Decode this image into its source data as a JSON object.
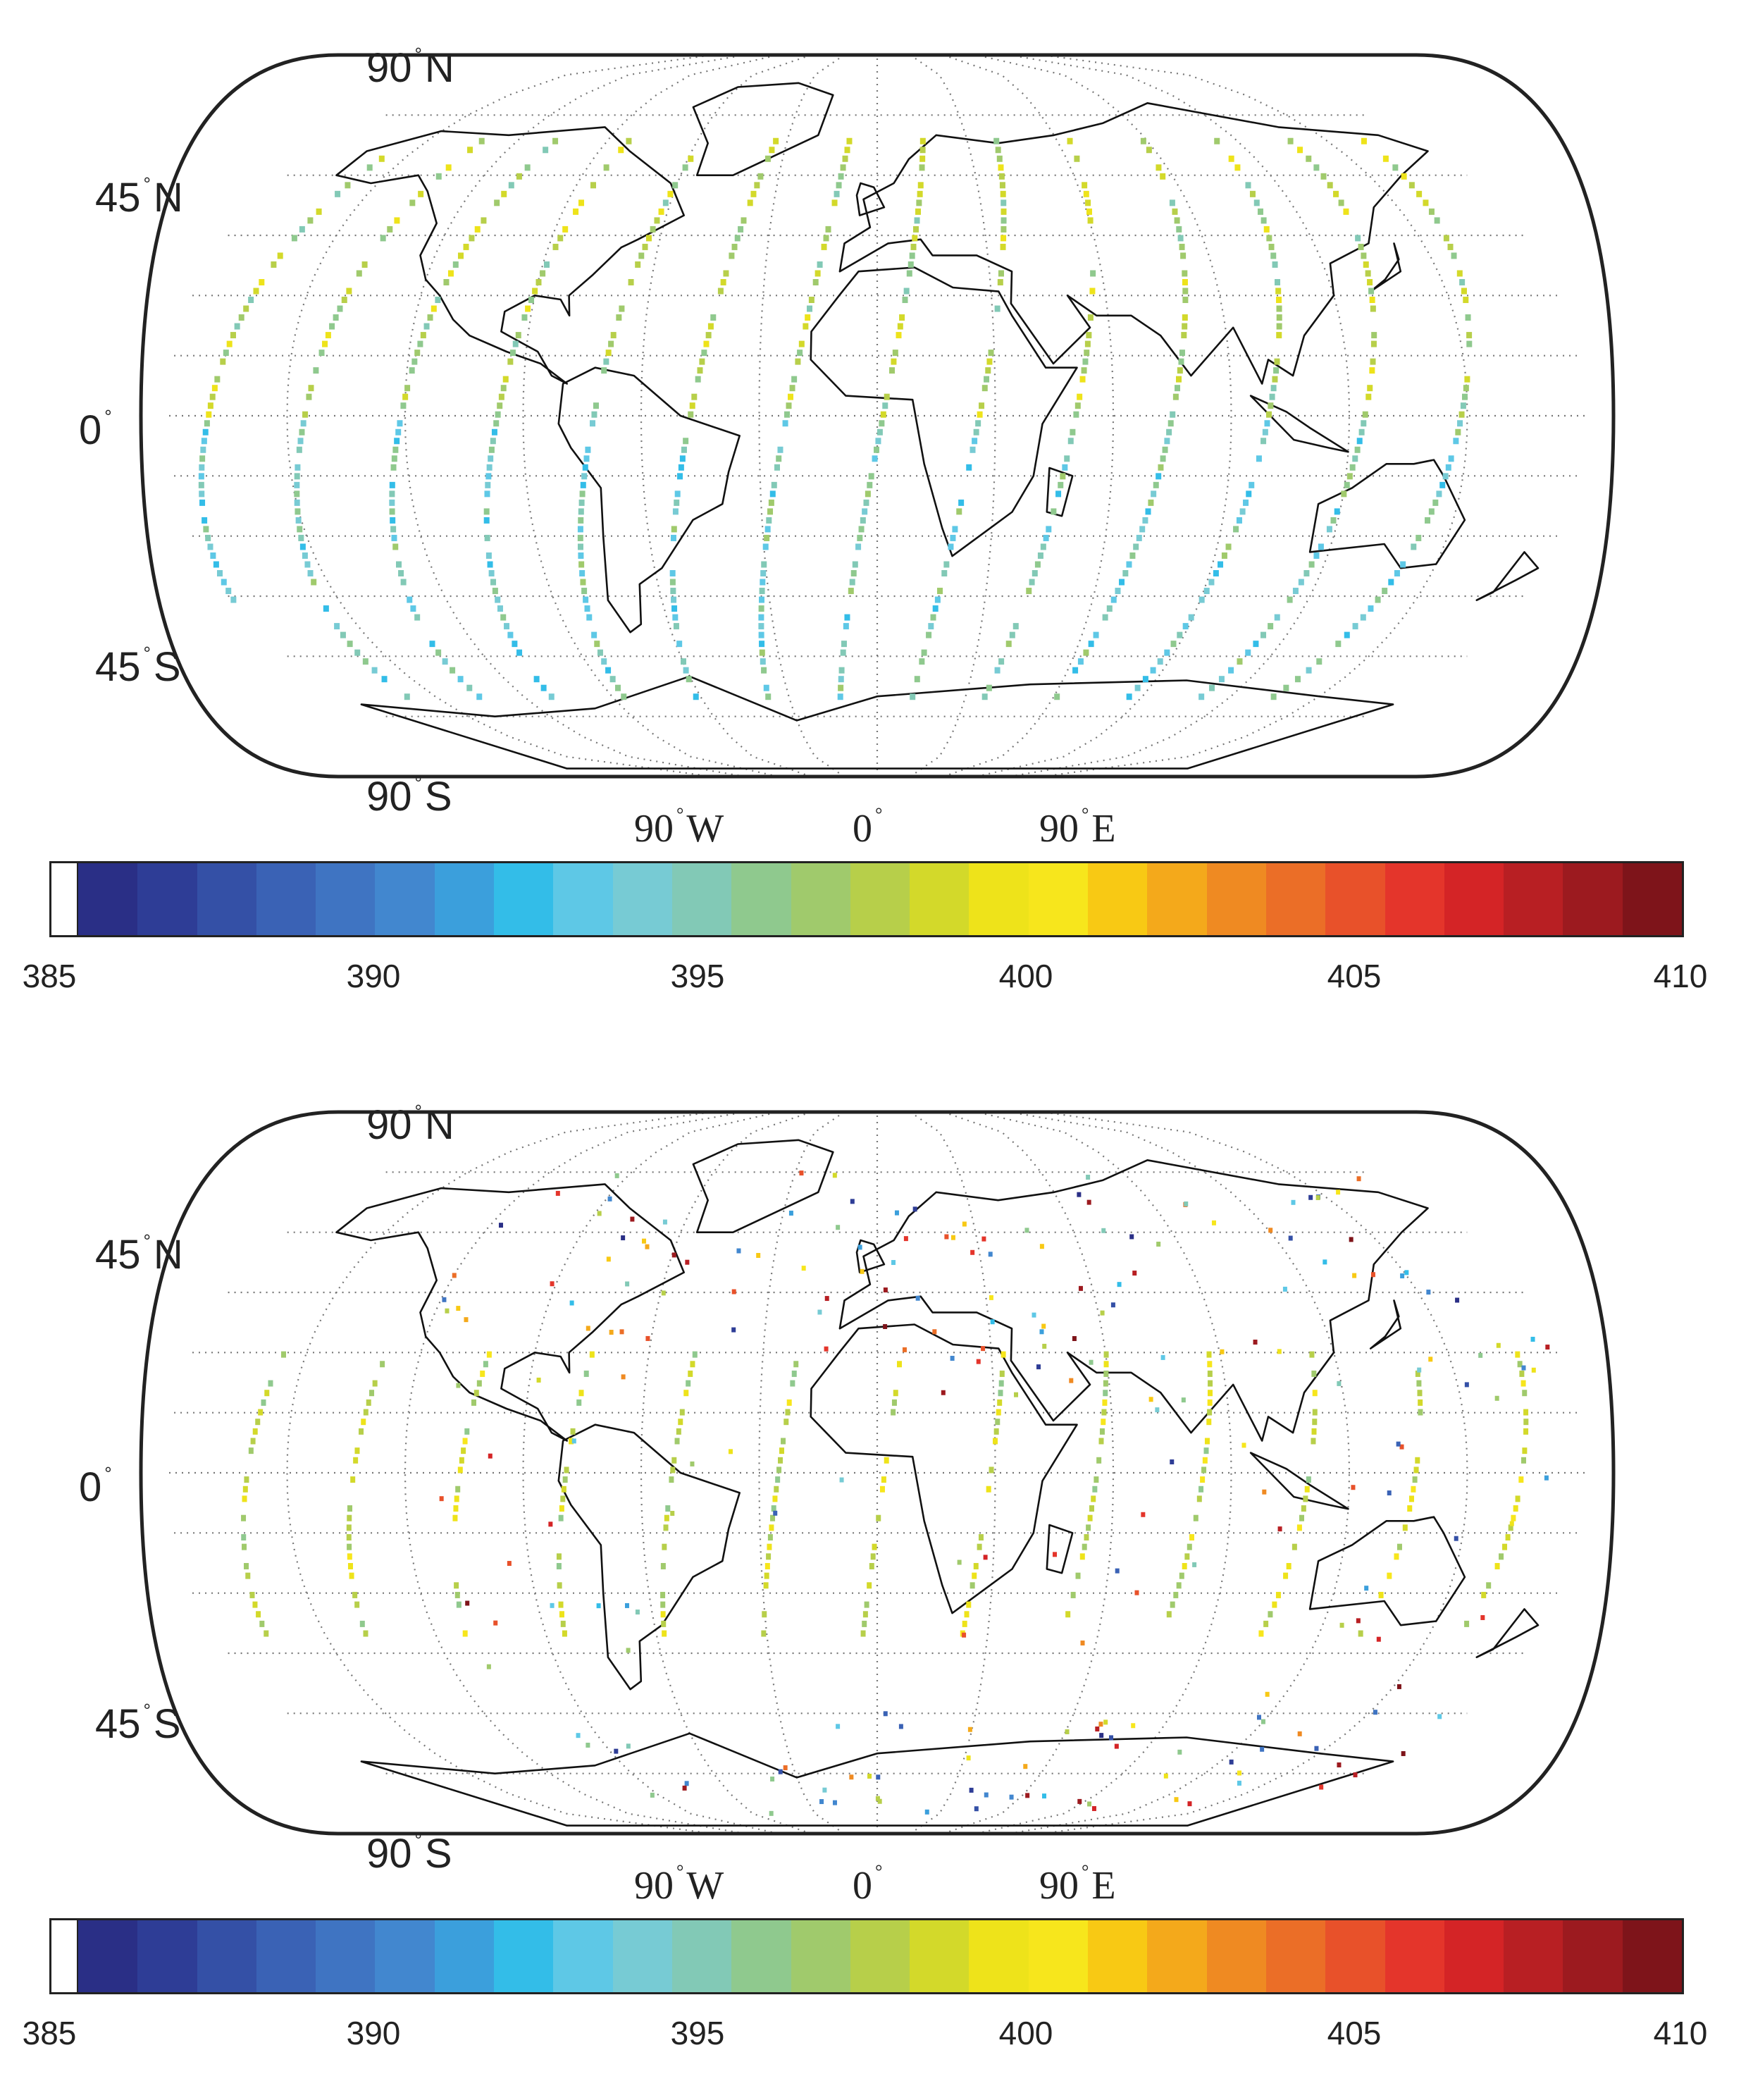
{
  "maps": [
    {
      "lat_labels": {
        "n90": "90",
        "n45": "45",
        "eq": "0",
        "s45": "45",
        "s90": "90"
      },
      "lat_suffix": {
        "n": "N",
        "s": "S"
      },
      "lon_labels": {
        "w90": "90",
        "zero": "0",
        "e90": "90"
      },
      "lon_suffix": {
        "w": "W",
        "e": "E"
      },
      "colorbar": {
        "ticks": [
          "385",
          "390",
          "395",
          "400",
          "405",
          "410"
        ],
        "min": 385,
        "max": 410
      }
    },
    {
      "lat_labels": {
        "n90": "90",
        "n45": "45",
        "eq": "0",
        "s45": "45",
        "s90": "90"
      },
      "lat_suffix": {
        "n": "N",
        "s": "S"
      },
      "lon_labels": {
        "w90": "90",
        "zero": "0",
        "e90": "90"
      },
      "lon_suffix": {
        "w": "W",
        "e": "E"
      },
      "colorbar": {
        "ticks": [
          "385",
          "390",
          "395",
          "400",
          "405",
          "410"
        ],
        "min": 385,
        "max": 410
      }
    }
  ],
  "colors": {
    "colormap": [
      "#2a2f86",
      "#2e3d96",
      "#3450a6",
      "#3a62b5",
      "#3f74c2",
      "#4287cf",
      "#3b9fdc",
      "#33bde8",
      "#5ec8e6",
      "#77cbd4",
      "#82c9b6",
      "#8fc98e",
      "#a0ca6c",
      "#b7cf4a",
      "#d3d92a",
      "#eee31a",
      "#f7e61c",
      "#f8c914",
      "#f4a91b",
      "#ef8a22",
      "#eb6e27",
      "#e8512a",
      "#e4352b",
      "#d42426",
      "#b81f23",
      "#9c1a1f",
      "#7e141a"
    ],
    "coast": "#111111",
    "grid": "#777777",
    "frame": "#222222"
  }
}
